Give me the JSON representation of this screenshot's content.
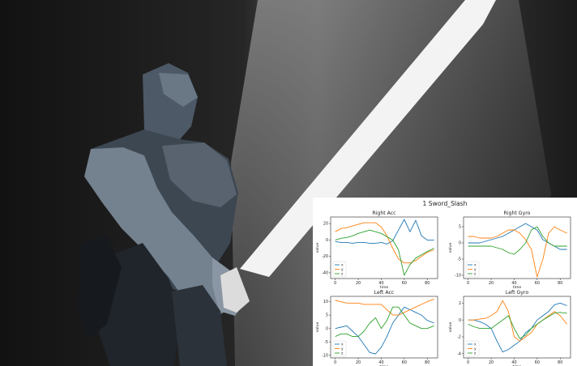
{
  "figure": {
    "title": "1 Sword_Slash"
  },
  "colors": {
    "x": "#1f77b4",
    "y": "#ff7f0e",
    "z": "#2ca02c"
  },
  "chart_data": [
    {
      "type": "line",
      "title": "Right Acc",
      "xlabel": "time",
      "ylabel": "value",
      "xlim": [
        -4,
        89
      ],
      "ylim": [
        -47,
        28
      ],
      "xticks": [
        0,
        20,
        40,
        60,
        80
      ],
      "yticks": [
        20,
        0,
        -20,
        -40
      ],
      "legend": "lower-left",
      "x": [
        0,
        5,
        10,
        15,
        20,
        25,
        30,
        35,
        40,
        45,
        50,
        55,
        60,
        65,
        70,
        75,
        80,
        86
      ],
      "series": [
        {
          "name": "x",
          "values": [
            -2,
            -3,
            -3,
            -4,
            -3,
            -3,
            -4,
            -4,
            -3,
            -5,
            -1,
            12,
            25,
            10,
            24,
            5,
            0,
            0
          ]
        },
        {
          "name": "y",
          "values": [
            10,
            14,
            15,
            17,
            19,
            21,
            21,
            21,
            16,
            5,
            -10,
            -23,
            -28,
            -28,
            -25,
            -20,
            -15,
            -12
          ]
        },
        {
          "name": "z",
          "values": [
            0,
            2,
            3,
            5,
            8,
            10,
            12,
            10,
            8,
            4,
            0,
            -12,
            -43,
            -30,
            -22,
            -18,
            -14,
            -10
          ]
        }
      ]
    },
    {
      "type": "line",
      "title": "Right Gyro",
      "xlabel": "time",
      "ylabel": "value",
      "xlim": [
        -4,
        89
      ],
      "ylim": [
        -11,
        8
      ],
      "xticks": [
        0,
        20,
        40,
        60,
        80
      ],
      "yticks": [
        5,
        0,
        -5,
        -10
      ],
      "legend": "lower-left",
      "x": [
        0,
        5,
        10,
        15,
        20,
        25,
        30,
        35,
        40,
        45,
        50,
        55,
        60,
        65,
        70,
        75,
        80,
        86
      ],
      "series": [
        {
          "name": "x",
          "values": [
            0,
            0,
            0,
            0.5,
            1,
            1.5,
            2,
            3,
            4,
            5,
            6,
            5,
            4,
            1,
            0,
            -1,
            -2,
            -2
          ]
        },
        {
          "name": "y",
          "values": [
            2,
            2,
            1.5,
            1.5,
            1.5,
            2,
            3,
            4,
            4,
            3,
            1,
            -2,
            -10.5,
            -5,
            3,
            5,
            4,
            3
          ]
        },
        {
          "name": "z",
          "values": [
            -1,
            -1,
            -1,
            -1,
            -1,
            -1.5,
            -2,
            -3,
            -3.5,
            -2,
            0,
            4,
            5,
            2,
            0,
            -1,
            -1,
            -1
          ]
        }
      ]
    },
    {
      "type": "line",
      "title": "Left Acc",
      "xlabel": "time",
      "ylabel": "value",
      "xlim": [
        -4,
        89
      ],
      "ylim": [
        -11,
        12
      ],
      "xticks": [
        0,
        20,
        40,
        60,
        80
      ],
      "yticks": [
        10,
        5,
        0,
        -5,
        -10
      ],
      "legend": "lower-left",
      "x": [
        0,
        5,
        10,
        15,
        20,
        25,
        30,
        35,
        40,
        45,
        50,
        55,
        60,
        65,
        70,
        75,
        80,
        86
      ],
      "series": [
        {
          "name": "x",
          "values": [
            0,
            0.5,
            1,
            -1,
            -3,
            -6,
            -9,
            -9.5,
            -7,
            -3,
            2,
            5,
            8,
            7,
            6,
            5,
            3,
            2
          ]
        },
        {
          "name": "y",
          "values": [
            10.5,
            10,
            9.5,
            9.5,
            9.5,
            9,
            9,
            9,
            9,
            7,
            5,
            5,
            6,
            7,
            8,
            9,
            10,
            11
          ]
        },
        {
          "name": "z",
          "values": [
            -3,
            -2,
            -2,
            -3,
            -3,
            -1,
            2,
            4,
            0,
            3,
            8,
            8,
            5,
            2,
            1,
            0,
            0,
            1
          ]
        }
      ]
    },
    {
      "type": "line",
      "title": "Left Gyro",
      "xlabel": "time",
      "ylabel": "value",
      "xlim": [
        -4,
        89
      ],
      "ylim": [
        -4.5,
        2.8
      ],
      "xticks": [
        0,
        20,
        40,
        60,
        80
      ],
      "yticks": [
        2,
        0,
        -2,
        -4
      ],
      "legend": "lower-left",
      "x": [
        0,
        5,
        10,
        15,
        20,
        25,
        30,
        35,
        40,
        45,
        50,
        55,
        60,
        65,
        70,
        75,
        80,
        86
      ],
      "series": [
        {
          "name": "x",
          "values": [
            0,
            0,
            -0.2,
            -0.5,
            -1,
            -2.5,
            -3.8,
            -3.5,
            -3,
            -2.5,
            -1.5,
            -1,
            0,
            0.5,
            1,
            1.8,
            2,
            1.7
          ]
        },
        {
          "name": "y",
          "values": [
            0,
            0,
            0.1,
            0.2,
            0.5,
            1,
            2.3,
            1,
            -2,
            -2.5,
            -2,
            -1.5,
            -0.5,
            0,
            0.5,
            1,
            0.5,
            -0.5
          ]
        },
        {
          "name": "z",
          "values": [
            -0.5,
            -0.8,
            -1,
            -1,
            -1,
            -0.5,
            0,
            0.5,
            -1,
            -2.2,
            -1.8,
            -1,
            -0.5,
            0,
            0.4,
            0.8,
            0.9,
            0.8
          ]
        }
      ]
    }
  ]
}
